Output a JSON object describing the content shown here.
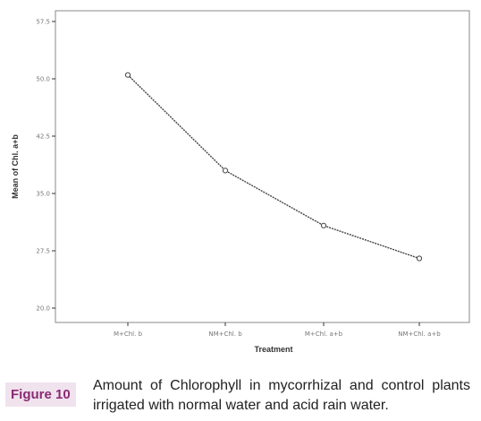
{
  "chart_data": {
    "type": "line",
    "title": "",
    "xlabel": "Treatment",
    "ylabel": "Mean of Chl. a+b",
    "categories": [
      "M+Chl. b",
      "NM+Chl. b",
      "M+Chl. a+b",
      "NM+Chl. a+b"
    ],
    "yticks": [
      "57.5",
      "50.0",
      "42.5",
      "35.0",
      "27.5",
      "20.0"
    ],
    "tick_values": [
      57.5,
      50.0,
      42.5,
      35.0,
      27.5,
      20.0
    ],
    "ylim": [
      20.0,
      57.5
    ],
    "series": [
      {
        "values": [
          50.5,
          38.0,
          30.8,
          26.5
        ]
      }
    ],
    "grid": false,
    "line_color": "#444444",
    "frame_color": "#888888"
  },
  "caption": {
    "label": "Figure 10",
    "text": "Amount of Chlorophyll in mycorrhizal and control plants irrigated with normal water and acid rain water.",
    "label_color": "#8a2a72",
    "label_background": "#f0e3ee"
  }
}
